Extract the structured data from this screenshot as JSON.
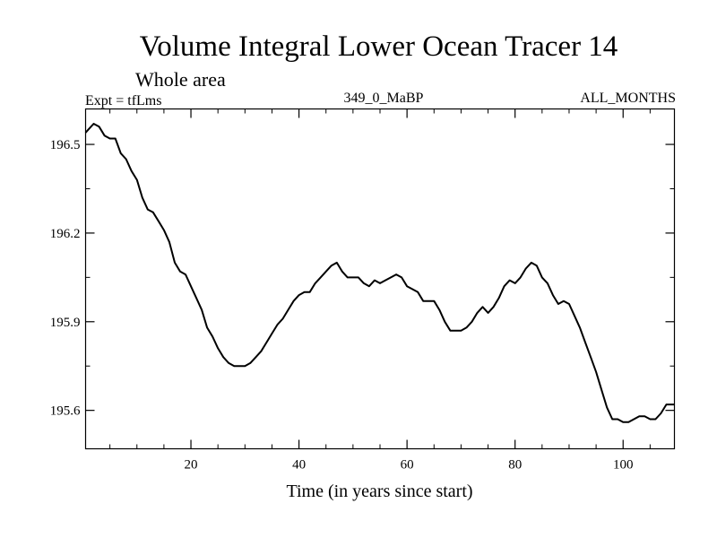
{
  "chart_data": {
    "type": "line",
    "title": "Volume Integral Lower Ocean Tracer 14",
    "subtitle": "Whole area",
    "expt_label": "Expt = tfLms",
    "center_label": "349_0_MaBP",
    "right_label": "ALL_MONTHS",
    "xlabel": "Time (in years since start)",
    "ylabel": "",
    "xlim": [
      0.5,
      109.5
    ],
    "ylim": [
      195.47,
      196.62
    ],
    "xticks": [
      20,
      40,
      60,
      80,
      100
    ],
    "xticks_minor": [
      5,
      10,
      15,
      25,
      30,
      35,
      45,
      50,
      55,
      65,
      70,
      75,
      85,
      90,
      95,
      105
    ],
    "yticks": [
      195.6,
      195.9,
      196.2,
      196.5
    ],
    "ytick_labels": [
      "195.6",
      "195.9",
      "196.2",
      "196.5"
    ],
    "series": [
      {
        "name": "Volume Integral",
        "x": [
          0.5,
          1,
          2,
          3,
          4,
          5,
          6,
          7,
          8,
          9,
          10,
          11,
          12,
          13,
          14,
          15,
          16,
          17,
          18,
          19,
          20,
          21,
          22,
          23,
          24,
          25,
          26,
          27,
          28,
          29,
          30,
          31,
          32,
          33,
          34,
          35,
          36,
          37,
          38,
          39,
          40,
          41,
          42,
          43,
          44,
          45,
          46,
          47,
          48,
          49,
          50,
          51,
          52,
          53,
          54,
          55,
          56,
          57,
          58,
          59,
          60,
          61,
          62,
          63,
          64,
          65,
          66,
          67,
          68,
          69,
          70,
          71,
          72,
          73,
          74,
          75,
          76,
          77,
          78,
          79,
          80,
          81,
          82,
          83,
          84,
          85,
          86,
          87,
          88,
          89,
          90,
          91,
          92,
          93,
          94,
          95,
          96,
          97,
          98,
          99,
          100,
          101,
          102,
          103,
          104,
          105,
          106,
          107,
          108,
          109,
          109.5
        ],
        "y": [
          196.54,
          196.55,
          196.57,
          196.56,
          196.53,
          196.52,
          196.52,
          196.47,
          196.45,
          196.41,
          196.38,
          196.32,
          196.28,
          196.27,
          196.24,
          196.21,
          196.17,
          196.1,
          196.07,
          196.06,
          196.02,
          195.98,
          195.94,
          195.88,
          195.85,
          195.81,
          195.78,
          195.76,
          195.75,
          195.75,
          195.75,
          195.76,
          195.78,
          195.8,
          195.83,
          195.86,
          195.89,
          195.91,
          195.94,
          195.97,
          195.99,
          196.0,
          196.0,
          196.03,
          196.05,
          196.07,
          196.09,
          196.1,
          196.07,
          196.05,
          196.05,
          196.05,
          196.03,
          196.02,
          196.04,
          196.03,
          196.04,
          196.05,
          196.06,
          196.05,
          196.02,
          196.01,
          196.0,
          195.97,
          195.97,
          195.97,
          195.94,
          195.9,
          195.87,
          195.87,
          195.87,
          195.88,
          195.9,
          195.93,
          195.95,
          195.93,
          195.95,
          195.98,
          196.02,
          196.04,
          196.03,
          196.05,
          196.08,
          196.1,
          196.09,
          196.05,
          196.03,
          195.99,
          195.96,
          195.97,
          195.96,
          195.92,
          195.88,
          195.83,
          195.78,
          195.73,
          195.67,
          195.61,
          195.57,
          195.57,
          195.56,
          195.56,
          195.57,
          195.58,
          195.58,
          195.57,
          195.57,
          195.59,
          195.62,
          195.62,
          195.62
        ]
      }
    ]
  }
}
